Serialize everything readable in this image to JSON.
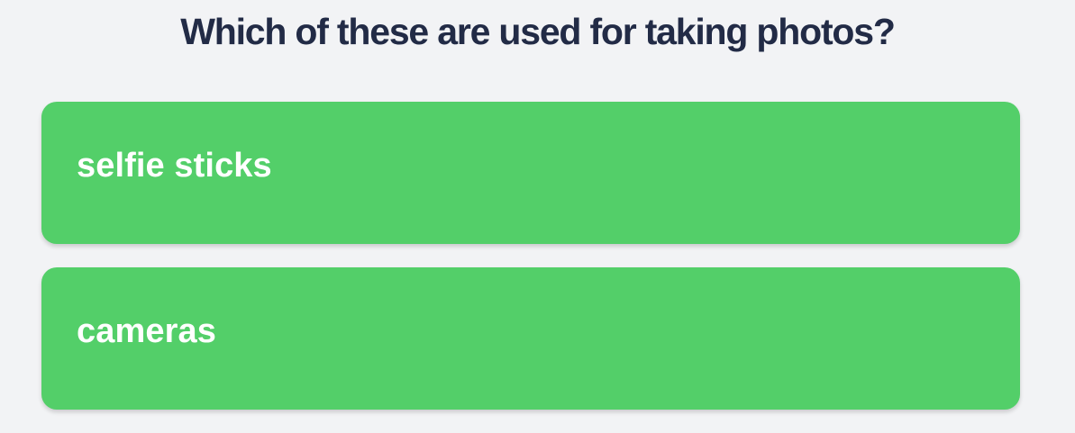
{
  "quiz": {
    "question": "Which of these are used for taking photos?",
    "answers": [
      {
        "label": "selfie sticks"
      },
      {
        "label": "cameras"
      }
    ]
  },
  "colors": {
    "background": "#f2f3f5",
    "question_text": "#222b46",
    "answer_background": "#53cf69",
    "answer_text": "#ffffff"
  }
}
